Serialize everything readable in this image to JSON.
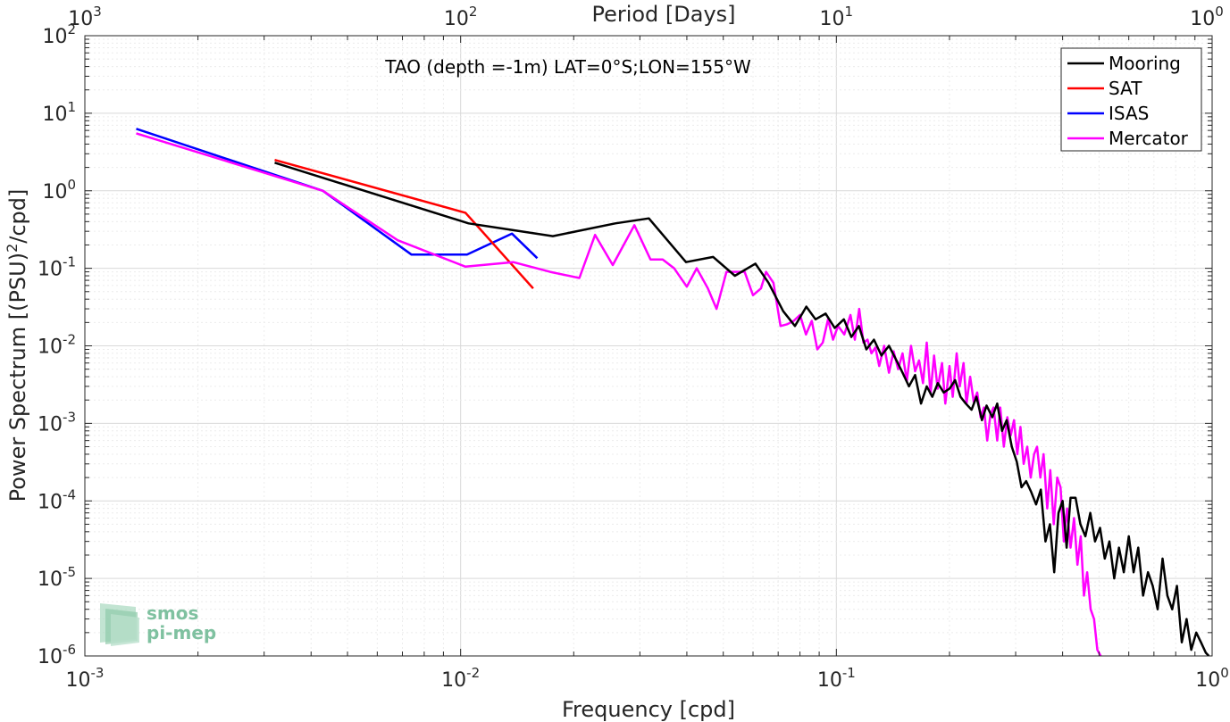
{
  "colors": {
    "mooring": "#000000",
    "sat": "#ff0000",
    "isas": "#0000ff",
    "mercator": "#ff00ff",
    "logo": "#7fc1a0"
  },
  "logo": {
    "line1": "smos",
    "line2": "pi-mep"
  },
  "chart_data": {
    "type": "line",
    "title": "TAO (depth =-1m) LAT=0°S;LON=155°W",
    "xlabel": "Frequency [cpd]",
    "ylabel_main": "Power Spectrum [(PSU)",
    "ylabel_sup": "2",
    "ylabel_end": "/cpd]",
    "x2label": "Period [Days]",
    "xscale": "log",
    "yscale": "log",
    "xlim": [
      0.001,
      1
    ],
    "ylim": [
      1e-06,
      100
    ],
    "grid": true,
    "legend_position": "top-right",
    "x_ticks": [
      {
        "value": 0.001,
        "base": "10",
        "exp": "-3"
      },
      {
        "value": 0.01,
        "base": "10",
        "exp": "-2"
      },
      {
        "value": 0.1,
        "base": "10",
        "exp": "-1"
      },
      {
        "value": 1,
        "base": "10",
        "exp": "0"
      }
    ],
    "top_ticks": [
      {
        "value": 0.001,
        "base": "10",
        "exp": "3"
      },
      {
        "value": 0.01,
        "base": "10",
        "exp": "2"
      },
      {
        "value": 0.1,
        "base": "10",
        "exp": "1"
      },
      {
        "value": 1,
        "base": "10",
        "exp": "0"
      }
    ],
    "y_ticks": [
      {
        "value": 1e-06,
        "base": "10",
        "exp": "-6"
      },
      {
        "value": 1e-05,
        "base": "10",
        "exp": "-5"
      },
      {
        "value": 0.0001,
        "base": "10",
        "exp": "-4"
      },
      {
        "value": 0.001,
        "base": "10",
        "exp": "-3"
      },
      {
        "value": 0.01,
        "base": "10",
        "exp": "-2"
      },
      {
        "value": 0.1,
        "base": "10",
        "exp": "-1"
      },
      {
        "value": 1,
        "base": "10",
        "exp": "0"
      },
      {
        "value": 10,
        "base": "10",
        "exp": "1"
      },
      {
        "value": 100,
        "base": "10",
        "exp": "2"
      }
    ],
    "series": [
      {
        "name": "Mooring",
        "color": "#000000",
        "points": [
          [
            0.0032,
            2.3
          ],
          [
            0.0105,
            0.38
          ],
          [
            0.0176,
            0.26
          ],
          [
            0.0258,
            0.38
          ],
          [
            0.0317,
            0.44
          ],
          [
            0.0398,
            0.12
          ],
          [
            0.047,
            0.14
          ],
          [
            0.0537,
            0.08
          ],
          [
            0.0609,
            0.115
          ],
          [
            0.066,
            0.065
          ],
          [
            0.0722,
            0.028
          ],
          [
            0.0776,
            0.018
          ],
          [
            0.0832,
            0.032
          ],
          [
            0.088,
            0.022
          ],
          [
            0.0936,
            0.026
          ],
          [
            0.099,
            0.017
          ],
          [
            0.1047,
            0.022
          ],
          [
            0.1096,
            0.013
          ],
          [
            0.1148,
            0.018
          ],
          [
            0.1202,
            0.009
          ],
          [
            0.1259,
            0.012
          ],
          [
            0.1318,
            0.0075
          ],
          [
            0.138,
            0.01
          ],
          [
            0.1445,
            0.0065
          ],
          [
            0.15,
            0.0045
          ],
          [
            0.156,
            0.003
          ],
          [
            0.162,
            0.0042
          ],
          [
            0.168,
            0.0018
          ],
          [
            0.174,
            0.003
          ],
          [
            0.18,
            0.0022
          ],
          [
            0.1862,
            0.0033
          ],
          [
            0.193,
            0.0025
          ],
          [
            0.2,
            0.0028
          ],
          [
            0.207,
            0.0036
          ],
          [
            0.214,
            0.0022
          ],
          [
            0.221,
            0.0018
          ],
          [
            0.229,
            0.0015
          ],
          [
            0.236,
            0.0022
          ],
          [
            0.244,
            0.0011
          ],
          [
            0.251,
            0.0017
          ],
          [
            0.26,
            0.0012
          ],
          [
            0.268,
            0.0018
          ],
          [
            0.276,
            0.0008
          ],
          [
            0.284,
            0.0011
          ],
          [
            0.293,
            0.0005
          ],
          [
            0.302,
            0.00032
          ],
          [
            0.311,
            0.00015
          ],
          [
            0.32,
            0.00018
          ],
          [
            0.33,
            0.00013
          ],
          [
            0.34,
            9e-05
          ],
          [
            0.35,
            0.00014
          ],
          [
            0.36,
            3e-05
          ],
          [
            0.37,
            5e-05
          ],
          [
            0.38,
            1.2e-05
          ],
          [
            0.39,
            7e-05
          ],
          [
            0.4,
            0.0001
          ],
          [
            0.41,
            2.5e-05
          ],
          [
            0.42,
            0.00011
          ],
          [
            0.433,
            0.00011
          ],
          [
            0.446,
            5e-05
          ],
          [
            0.46,
            3.5e-05
          ],
          [
            0.474,
            7e-05
          ],
          [
            0.488,
            3e-05
          ],
          [
            0.503,
            4.5e-05
          ],
          [
            0.518,
            1.8e-05
          ],
          [
            0.533,
            3e-05
          ],
          [
            0.549,
            1e-05
          ],
          [
            0.565,
            2.5e-05
          ],
          [
            0.582,
            1.2e-05
          ],
          [
            0.6,
            3.5e-05
          ],
          [
            0.618,
            1.2e-05
          ],
          [
            0.636,
            2.5e-05
          ],
          [
            0.655,
            6e-06
          ],
          [
            0.675,
            1.2e-05
          ],
          [
            0.695,
            8e-06
          ],
          [
            0.716,
            4e-06
          ],
          [
            0.738,
            1.8e-05
          ],
          [
            0.76,
            6e-06
          ],
          [
            0.783,
            4e-06
          ],
          [
            0.806,
            8e-06
          ],
          [
            0.83,
            1.5e-06
          ],
          [
            0.855,
            3e-06
          ],
          [
            0.88,
            1.2e-06
          ],
          [
            0.907,
            2e-06
          ],
          [
            0.934,
            1.5e-06
          ],
          [
            0.962,
            1.1e-06
          ],
          [
            0.98,
            1e-06
          ]
        ]
      },
      {
        "name": "SAT",
        "color": "#ff0000",
        "points": [
          [
            0.0032,
            2.5
          ],
          [
            0.0103,
            0.52
          ],
          [
            0.0156,
            0.055
          ]
        ]
      },
      {
        "name": "ISAS",
        "color": "#0000ff",
        "points": [
          [
            0.00137,
            6.3
          ],
          [
            0.0043,
            1.0
          ],
          [
            0.0074,
            0.15
          ],
          [
            0.0104,
            0.15
          ],
          [
            0.0137,
            0.28
          ],
          [
            0.016,
            0.135
          ]
        ]
      },
      {
        "name": "Mercator",
        "color": "#ff00ff",
        "points": [
          [
            0.00137,
            5.5
          ],
          [
            0.0043,
            1.0
          ],
          [
            0.0068,
            0.23
          ],
          [
            0.0103,
            0.105
          ],
          [
            0.0138,
            0.12
          ],
          [
            0.0173,
            0.09
          ],
          [
            0.0207,
            0.075
          ],
          [
            0.0228,
            0.27
          ],
          [
            0.0254,
            0.11
          ],
          [
            0.029,
            0.36
          ],
          [
            0.032,
            0.13
          ],
          [
            0.0345,
            0.13
          ],
          [
            0.037,
            0.1
          ],
          [
            0.04,
            0.058
          ],
          [
            0.0425,
            0.1
          ],
          [
            0.0455,
            0.055
          ],
          [
            0.048,
            0.03
          ],
          [
            0.051,
            0.09
          ],
          [
            0.054,
            0.09
          ],
          [
            0.057,
            0.09
          ],
          [
            0.06,
            0.045
          ],
          [
            0.063,
            0.055
          ],
          [
            0.065,
            0.09
          ],
          [
            0.068,
            0.065
          ],
          [
            0.071,
            0.018
          ],
          [
            0.074,
            0.019
          ],
          [
            0.077,
            0.021
          ],
          [
            0.08,
            0.025
          ],
          [
            0.083,
            0.014
          ],
          [
            0.086,
            0.021
          ],
          [
            0.089,
            0.009
          ],
          [
            0.092,
            0.011
          ],
          [
            0.095,
            0.022
          ],
          [
            0.098,
            0.012
          ],
          [
            0.101,
            0.018
          ],
          [
            0.105,
            0.014
          ],
          [
            0.109,
            0.025
          ],
          [
            0.112,
            0.012
          ],
          [
            0.115,
            0.03
          ],
          [
            0.118,
            0.011
          ],
          [
            0.121,
            0.012
          ],
          [
            0.124,
            0.008
          ],
          [
            0.127,
            0.0095
          ],
          [
            0.13,
            0.0055
          ],
          [
            0.134,
            0.01
          ],
          [
            0.138,
            0.0045
          ],
          [
            0.142,
            0.0085
          ],
          [
            0.146,
            0.005
          ],
          [
            0.15,
            0.008
          ],
          [
            0.154,
            0.0035
          ],
          [
            0.158,
            0.01
          ],
          [
            0.162,
            0.0047
          ],
          [
            0.166,
            0.0065
          ],
          [
            0.17,
            0.0033
          ],
          [
            0.174,
            0.011
          ],
          [
            0.178,
            0.0024
          ],
          [
            0.182,
            0.0075
          ],
          [
            0.186,
            0.0028
          ],
          [
            0.191,
            0.006
          ],
          [
            0.195,
            0.0018
          ],
          [
            0.2,
            0.0055
          ],
          [
            0.204,
            0.0022
          ],
          [
            0.209,
            0.008
          ],
          [
            0.213,
            0.003
          ],
          [
            0.218,
            0.006
          ],
          [
            0.222,
            0.0018
          ],
          [
            0.227,
            0.004
          ],
          [
            0.232,
            0.0019
          ],
          [
            0.237,
            0.0025
          ],
          [
            0.242,
            0.0012
          ],
          [
            0.247,
            0.0016
          ],
          [
            0.252,
            0.0006
          ],
          [
            0.257,
            0.0013
          ],
          [
            0.262,
            0.0016
          ],
          [
            0.268,
            0.0006
          ],
          [
            0.273,
            0.0016
          ],
          [
            0.279,
            0.0005
          ],
          [
            0.285,
            0.0012
          ],
          [
            0.291,
            0.0007
          ],
          [
            0.297,
            0.0011
          ],
          [
            0.303,
            0.0004
          ],
          [
            0.309,
            0.0009
          ],
          [
            0.315,
            0.0003
          ],
          [
            0.322,
            0.0005
          ],
          [
            0.329,
            0.0002
          ],
          [
            0.336,
            0.0004
          ],
          [
            0.342,
            0.0005
          ],
          [
            0.349,
            0.0002
          ],
          [
            0.356,
            0.0004
          ],
          [
            0.364,
            8e-05
          ],
          [
            0.371,
            0.00025
          ],
          [
            0.379,
            5e-05
          ],
          [
            0.387,
            0.0002
          ],
          [
            0.395,
            0.00015
          ],
          [
            0.403,
            3e-05
          ],
          [
            0.411,
            8e-05
          ],
          [
            0.42,
            2.5e-05
          ],
          [
            0.429,
            6e-05
          ],
          [
            0.438,
            1.5e-05
          ],
          [
            0.447,
            3.5e-05
          ],
          [
            0.456,
            6e-06
          ],
          [
            0.465,
            1.2e-05
          ],
          [
            0.475,
            4e-06
          ],
          [
            0.485,
            3e-06
          ],
          [
            0.495,
            1.2e-06
          ],
          [
            0.505,
            1e-06
          ]
        ]
      }
    ]
  }
}
